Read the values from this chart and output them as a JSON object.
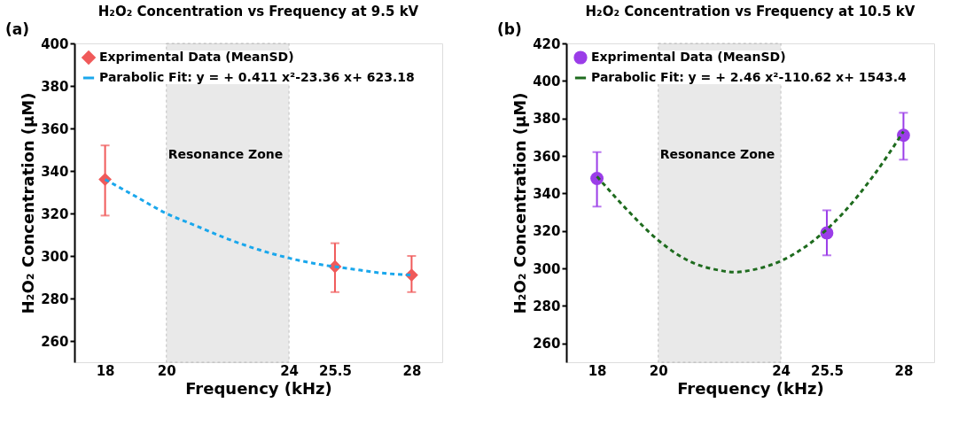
{
  "chart_data": [
    {
      "type": "scatter",
      "title": "H₂O₂ Concentration vs Frequency at 9.5 kV",
      "xlabel": "Frequency (kHz)",
      "ylabel": "H₂O₂ Concentration (μM)",
      "annotations": [
        "(a)"
      ],
      "xlim": [
        17,
        29
      ],
      "xticks": [
        18,
        20,
        24,
        25.5,
        28
      ],
      "ylim": [
        250,
        400
      ],
      "yticks": [
        260,
        280,
        300,
        320,
        340,
        360,
        380,
        400
      ],
      "grid": false,
      "legend": "top left",
      "bands": [
        {
          "axis": "x",
          "from": 20,
          "to": 24,
          "label": "Resonance Zone",
          "color": "#d0d0d0"
        }
      ],
      "series": [
        {
          "name": "Exprimental Data (MeanSD)",
          "color": "#f05a5a",
          "marker": "diamond",
          "x": [
            18,
            25.5,
            28
          ],
          "values": [
            336,
            295,
            291
          ],
          "errors": [
            [
              319,
              352
            ],
            [
              283,
              306
            ],
            [
              283,
              300
            ]
          ]
        },
        {
          "name": "Parabolic Fit: y = + 0.411 x²-23.36 x+ 623.18",
          "type": "line",
          "color": "#1aa7ec",
          "line_style": "dashed",
          "x": [
            18,
            19,
            20,
            21,
            22,
            23,
            24,
            25,
            26,
            27,
            28
          ],
          "values": [
            336,
            328,
            320,
            314,
            308,
            303,
            299,
            296,
            294,
            292,
            291
          ]
        }
      ]
    },
    {
      "type": "scatter",
      "title": "H₂O₂ Concentration vs Frequency at 10.5 kV",
      "xlabel": "Frequency (kHz)",
      "ylabel": "H₂O₂ Concentration (μM)",
      "annotations": [
        "(b)"
      ],
      "xlim": [
        17,
        29
      ],
      "xticks": [
        18,
        20,
        24,
        25.5,
        28
      ],
      "ylim": [
        250,
        420
      ],
      "yticks": [
        260,
        280,
        300,
        320,
        340,
        360,
        380,
        400,
        420
      ],
      "grid": false,
      "legend": "top left",
      "bands": [
        {
          "axis": "x",
          "from": 20,
          "to": 24,
          "label": "Resonance Zone",
          "color": "#d0d0d0"
        }
      ],
      "series": [
        {
          "name": "Exprimental Data (MeanSD)",
          "color": "#9b3de8",
          "marker": "circle",
          "x": [
            18,
            25.5,
            28
          ],
          "values": [
            348,
            319,
            371
          ],
          "errors": [
            [
              333,
              362
            ],
            [
              307,
              331
            ],
            [
              358,
              383
            ]
          ]
        },
        {
          "name": "Parabolic Fit: y = + 2.46 x²-110.62 x+ 1543.4",
          "type": "line",
          "color": "#1e6b1e",
          "line_style": "dashed",
          "x": [
            18,
            19,
            20,
            21,
            22,
            22.5,
            23,
            24,
            25,
            26,
            27,
            28
          ],
          "values": [
            349,
            331,
            315,
            304,
            299,
            298,
            299,
            304,
            314,
            329,
            349,
            373
          ]
        }
      ]
    }
  ]
}
